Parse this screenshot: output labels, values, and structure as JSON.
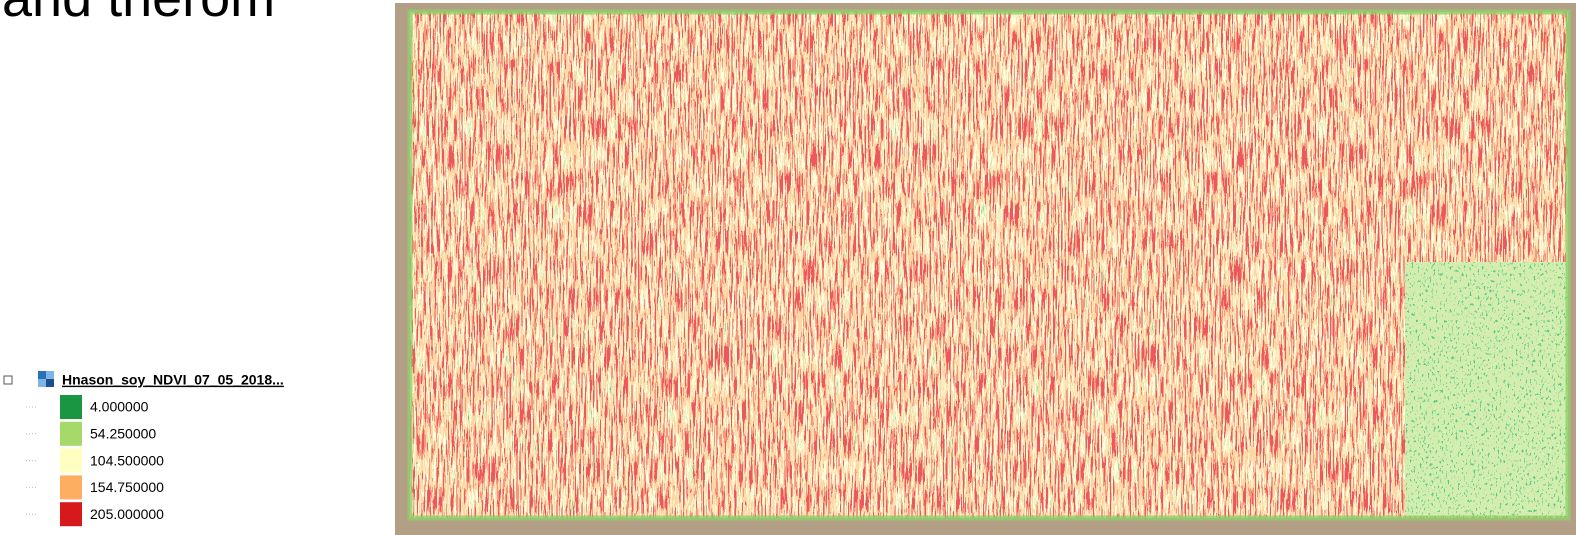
{
  "slide": {
    "title": "and therom"
  },
  "legend": {
    "layer_name": "Hnason_soy_NDVI_07_05_2018...",
    "entries": [
      {
        "label": "4.000000",
        "color": "#1a9641"
      },
      {
        "label": "54.250000",
        "color": "#a6d96a"
      },
      {
        "label": "104.500000",
        "color": "#ffffbf"
      },
      {
        "label": "154.750000",
        "color": "#fdae61"
      },
      {
        "label": "205.000000",
        "color": "#d7191c"
      }
    ]
  }
}
